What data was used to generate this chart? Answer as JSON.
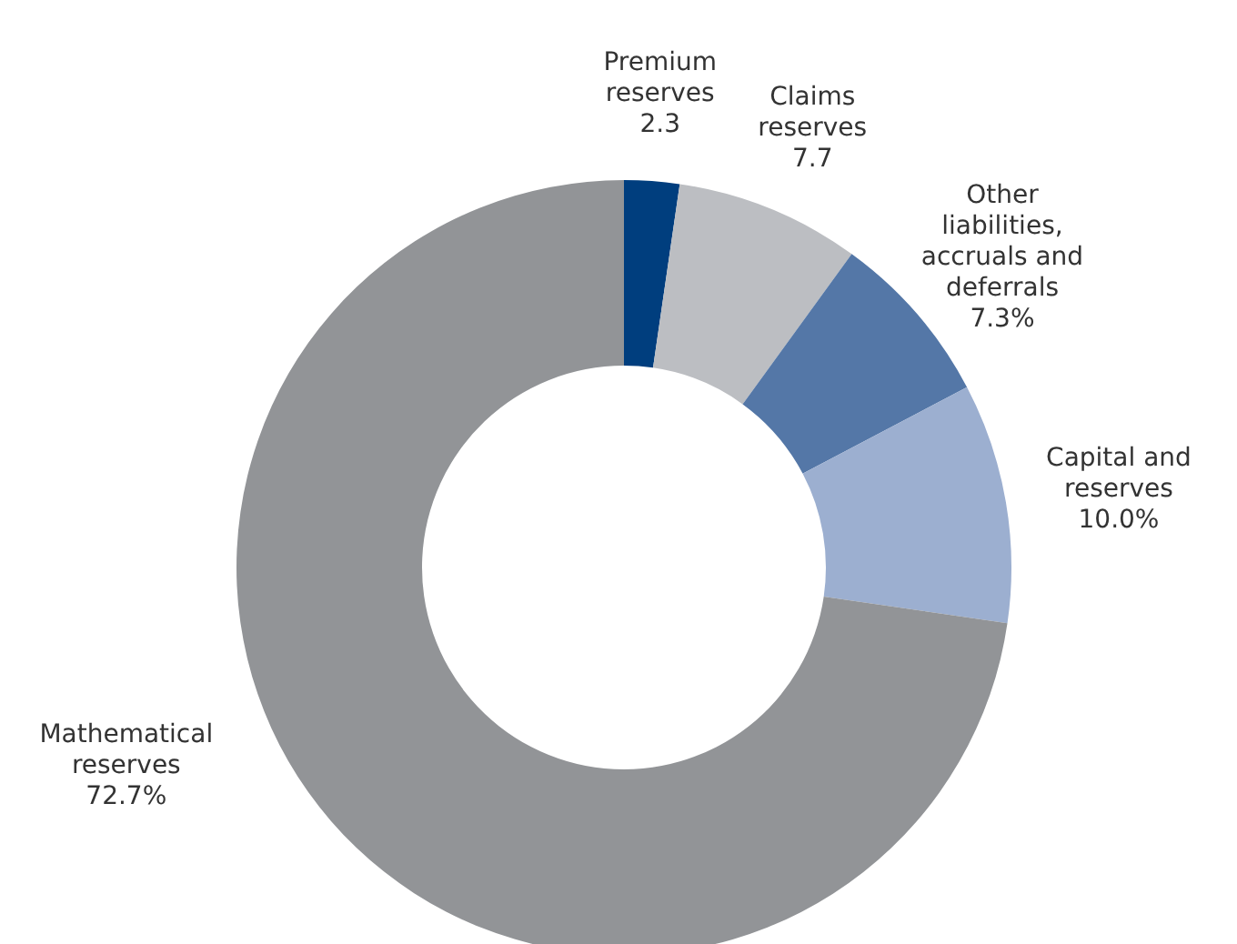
{
  "chart_data": {
    "type": "donut",
    "categories": [
      "Premium reserves",
      "Claims reserves",
      "Other liabilities, accruals and deferrals",
      "Capital and reserves",
      "Mathematical reserves"
    ],
    "values": [
      2.3,
      7.7,
      7.3,
      10.0,
      72.7
    ],
    "value_labels": [
      "2.3",
      "7.7",
      "7.3%",
      "10.0%",
      "72.7%"
    ],
    "colors": [
      "#003e7e",
      "#bcbec2",
      "#5477a7",
      "#9cafd0",
      "#929497"
    ],
    "legend": false
  }
}
